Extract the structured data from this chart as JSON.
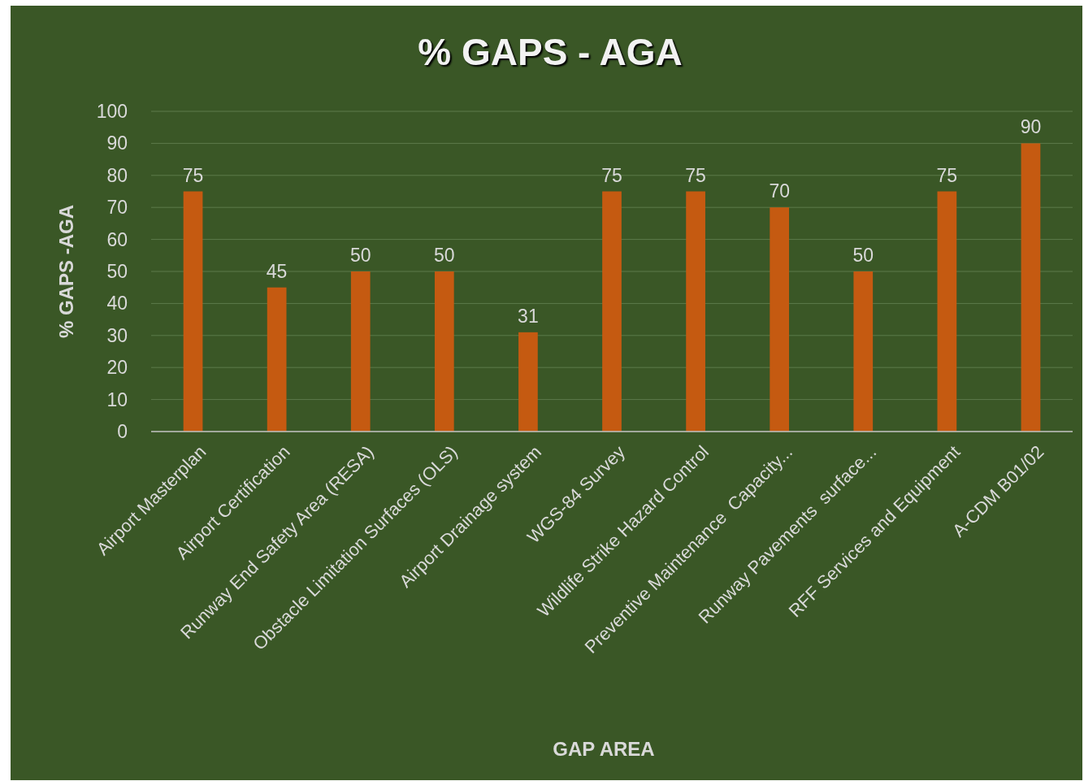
{
  "chart_data": {
    "type": "bar",
    "title": "% GAPS - AGA",
    "xlabel": "GAP AREA",
    "ylabel": "% GAPS -AGA",
    "categories": [
      "Airport Masterplan",
      "Airport Certification",
      "Runway End Safety Area (RESA)",
      "Obstacle Limitation Surfaces (OLS)",
      "Airport Drainage system",
      "WGS-84 Survey",
      "Wildlife Strike Hazard Control",
      "Preventive Maintenance  Capacity...",
      "Runway Pavements  surface...",
      "RFF Services and Equipment",
      "A-CDM B01/02"
    ],
    "values": [
      75,
      45,
      50,
      50,
      31,
      75,
      75,
      70,
      50,
      75,
      90
    ],
    "color": "#c55a11",
    "ylim": [
      0,
      100
    ],
    "yticks": [
      0,
      10,
      20,
      30,
      40,
      50,
      60,
      70,
      80,
      90,
      100
    ],
    "grid": "y",
    "data_labels": true
  }
}
